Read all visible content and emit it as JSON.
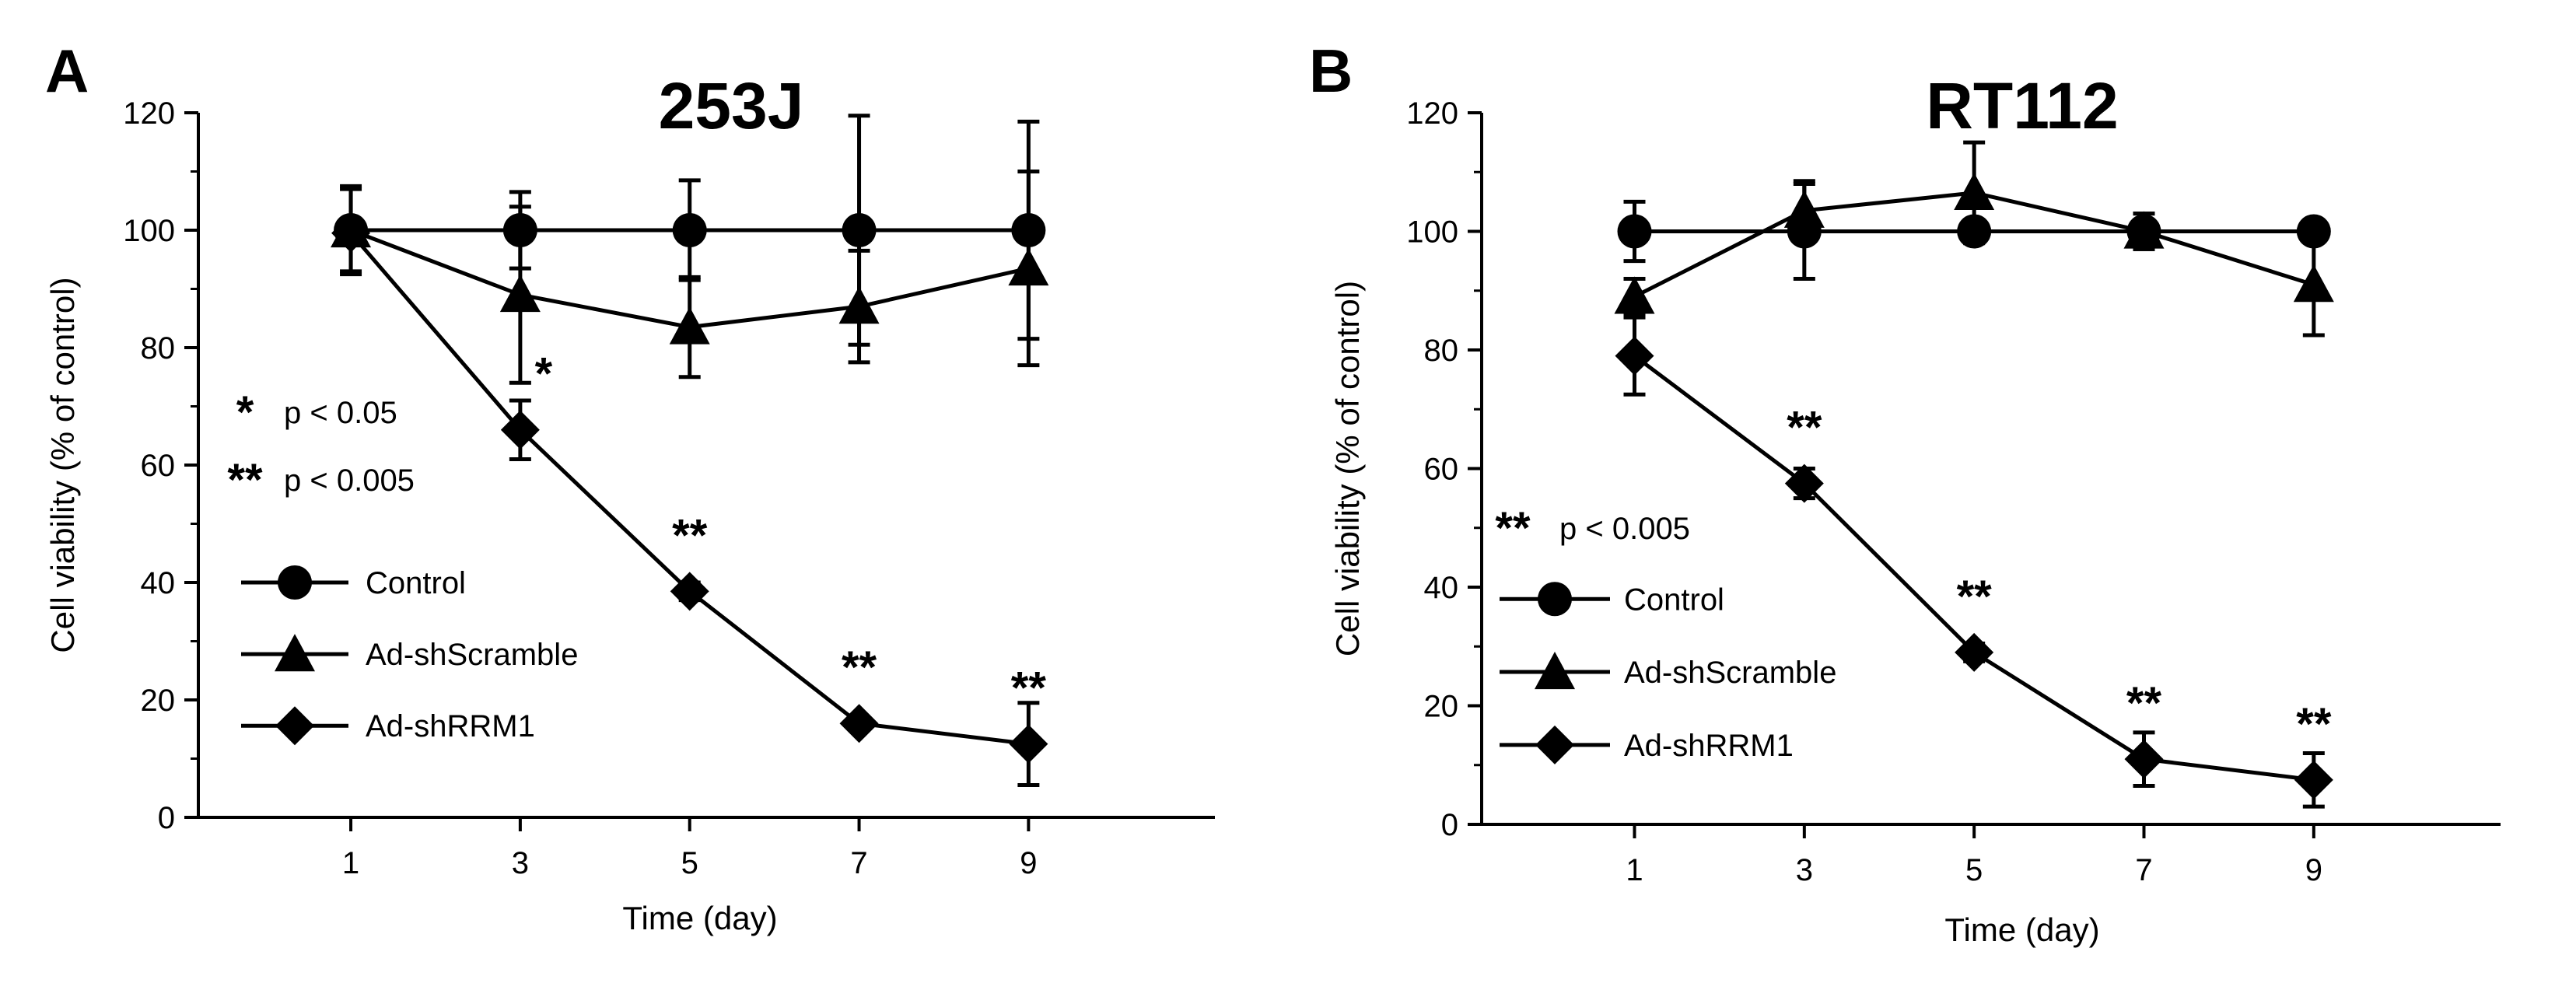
{
  "chart_data": [
    {
      "type": "line",
      "panel_label": "A",
      "title": "253J",
      "xlabel": "Time (day)",
      "ylabel": "Cell viability (% of control)",
      "x": [
        1,
        3,
        5,
        7,
        9
      ],
      "xlim": [
        -0.8,
        11.2
      ],
      "ylim": [
        0,
        120
      ],
      "xticks": [
        1,
        3,
        5,
        7,
        9
      ],
      "yticks": [
        0,
        20,
        40,
        60,
        80,
        100,
        120
      ],
      "series": [
        {
          "name": "Control",
          "marker": "circle",
          "values": [
            100,
            100,
            100,
            100,
            100
          ],
          "errors": [
            7,
            6.5,
            8.5,
            19.5,
            18.5
          ]
        },
        {
          "name": "Ad-shScramble",
          "marker": "triangle",
          "values": [
            100,
            89,
            83.5,
            87,
            93.5
          ],
          "errors": [
            7.5,
            15,
            8.5,
            9.5,
            16.5
          ]
        },
        {
          "name": "Ad-shRRM1",
          "marker": "diamond",
          "values": [
            99.5,
            66,
            38.5,
            16,
            12.5
          ],
          "errors": [
            2,
            5,
            1.5,
            1,
            7
          ]
        }
      ],
      "significance": [
        {
          "x": 3,
          "y": 66,
          "label": "*"
        },
        {
          "x": 5,
          "y": 38.5,
          "label": "**"
        },
        {
          "x": 7,
          "y": 16,
          "label": "**"
        },
        {
          "x": 9,
          "y": 12.5,
          "label": "**"
        }
      ],
      "significance_key": [
        {
          "stars": "*",
          "text": "p < 0.05"
        },
        {
          "stars": "**",
          "text": "p < 0.005"
        }
      ],
      "legend_position": "bottom-left"
    },
    {
      "type": "line",
      "panel_label": "B",
      "title": "RT112",
      "xlabel": "Time (day)",
      "ylabel": "Cell viability (% of control)",
      "x": [
        1,
        3,
        5,
        7,
        9
      ],
      "xlim": [
        -0.8,
        11.2
      ],
      "ylim": [
        0,
        120
      ],
      "xticks": [
        1,
        3,
        5,
        7,
        9
      ],
      "yticks": [
        0,
        20,
        40,
        60,
        80,
        100,
        120
      ],
      "series": [
        {
          "name": "Control",
          "marker": "circle",
          "values": [
            100,
            100,
            100,
            100,
            100
          ],
          "errors": [
            5,
            8,
            1.5,
            3,
            1.5
          ]
        },
        {
          "name": "Ad-shScramble",
          "marker": "triangle",
          "values": [
            89,
            103.5,
            106.5,
            100,
            91
          ],
          "errors": [
            3,
            5,
            8.5,
            3,
            8.5
          ]
        },
        {
          "name": "Ad-shRRM1",
          "marker": "diamond",
          "values": [
            79,
            57.5,
            29,
            11,
            7.5
          ],
          "errors": [
            6.5,
            2.5,
            1.5,
            4.5,
            4.5
          ]
        }
      ],
      "significance": [
        {
          "x": 3,
          "y": 57.5,
          "label": "**"
        },
        {
          "x": 5,
          "y": 29,
          "label": "**"
        },
        {
          "x": 7,
          "y": 11,
          "label": "**"
        },
        {
          "x": 9,
          "y": 7.5,
          "label": "**"
        }
      ],
      "significance_key": [
        {
          "stars": "**",
          "text": "p < 0.005"
        }
      ],
      "legend_position": "bottom-left"
    }
  ]
}
